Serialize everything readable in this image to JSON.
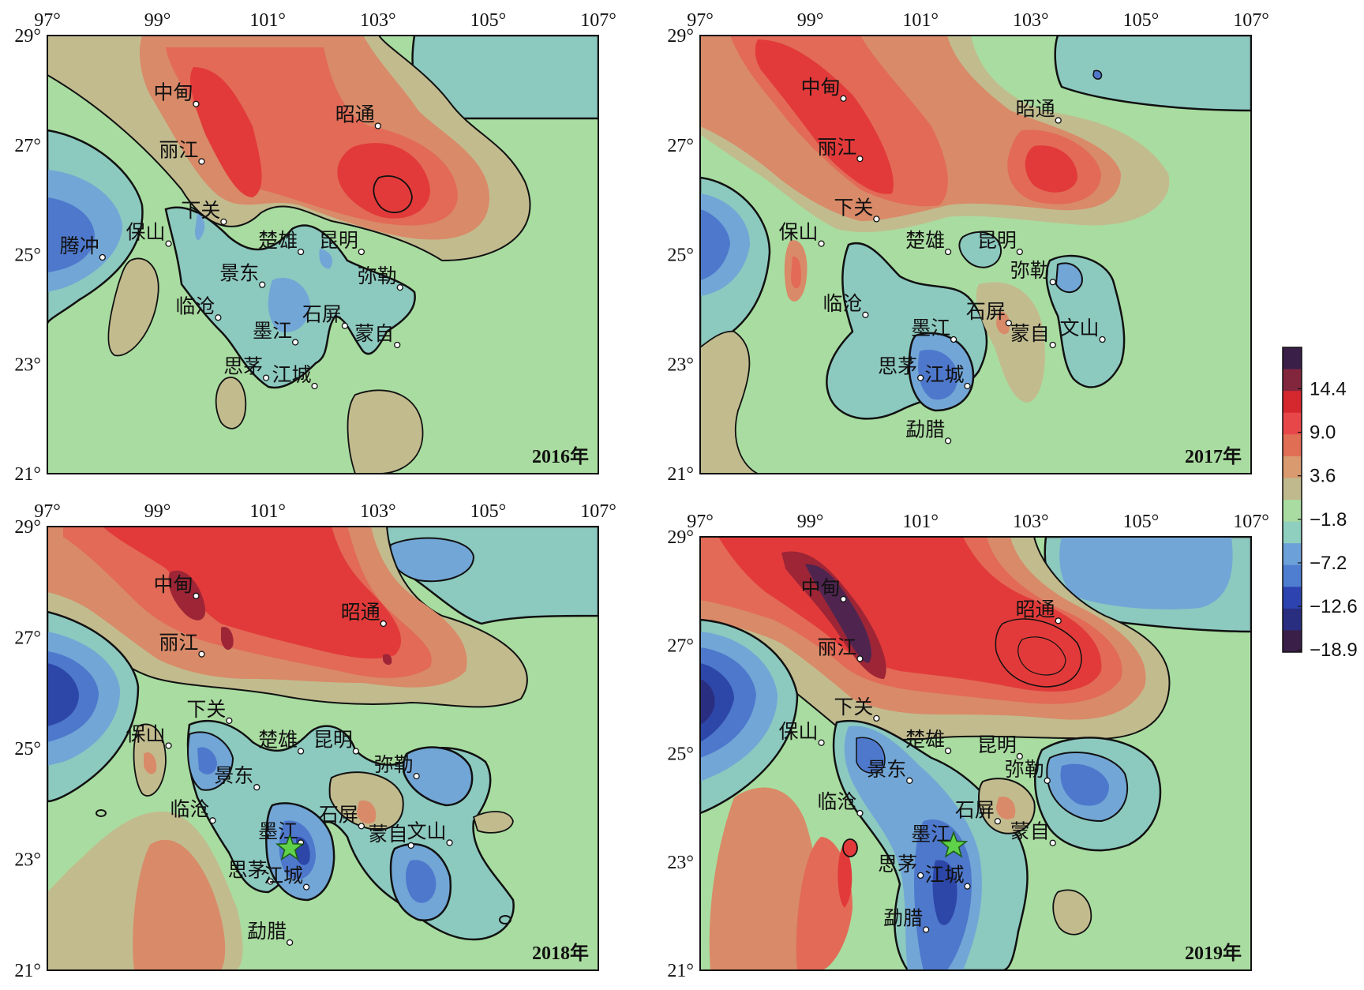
{
  "axes": {
    "lon_labels": [
      "97°",
      "99°",
      "101°",
      "103°",
      "105°",
      "107°"
    ],
    "lat_labels": [
      "29°",
      "27°",
      "25°",
      "23°",
      "21°"
    ]
  },
  "legend": {
    "labels": [
      "14.4",
      "9.0",
      "3.6",
      "−1.8",
      "−7.2",
      "−12.6",
      "−18.9"
    ],
    "colors": [
      "#3a1f48",
      "#82263e",
      "#d4282e",
      "#e8474a",
      "#df6e55",
      "#d99a6f",
      "#bfb98d",
      "#a9dca0",
      "#8fcfc0",
      "#6ca0d8",
      "#4f7ed0",
      "#2d44b0",
      "#2a2e80",
      "#3a1f48"
    ]
  },
  "palette": {
    "background": "#a9dca0",
    "tan": "#c2bb8e",
    "orange": "#d98a68",
    "salmon": "#e26a57",
    "red": "#e23a3a",
    "darkred": "#9d2536",
    "purple": "#4f2550",
    "teal": "#8cc9bf",
    "lightblue": "#72a6d6",
    "blue": "#4e78cc",
    "darkblue": "#2d47a8",
    "star": "#5fd14a"
  },
  "panels": [
    {
      "year": "2016年",
      "cities": [
        {
          "name": "中甸",
          "lon": 99.7,
          "lat": 27.75
        },
        {
          "name": "丽江",
          "lon": 99.8,
          "lat": 26.7
        },
        {
          "name": "昭通",
          "lon": 103.0,
          "lat": 27.35
        },
        {
          "name": "保山",
          "lon": 99.2,
          "lat": 25.2
        },
        {
          "name": "下关",
          "lon": 100.2,
          "lat": 25.6
        },
        {
          "name": "腾冲",
          "lon": 98.0,
          "lat": 24.95
        },
        {
          "name": "楚雄",
          "lon": 101.6,
          "lat": 25.05
        },
        {
          "name": "昆明",
          "lon": 102.7,
          "lat": 25.05
        },
        {
          "name": "景东",
          "lon": 100.9,
          "lat": 24.45
        },
        {
          "name": "弥勒",
          "lon": 103.4,
          "lat": 24.4
        },
        {
          "name": "临沧",
          "lon": 100.1,
          "lat": 23.85
        },
        {
          "name": "石屏",
          "lon": 102.4,
          "lat": 23.7
        },
        {
          "name": "蒙自",
          "lon": 103.35,
          "lat": 23.35
        },
        {
          "name": "墨江",
          "lon": 101.5,
          "lat": 23.4
        },
        {
          "name": "思茅",
          "lon": 100.97,
          "lat": 22.75
        },
        {
          "name": "江城",
          "lon": 101.85,
          "lat": 22.6
        }
      ]
    },
    {
      "year": "2017年",
      "cities": [
        {
          "name": "中甸",
          "lon": 99.6,
          "lat": 27.85
        },
        {
          "name": "丽江",
          "lon": 99.9,
          "lat": 26.75
        },
        {
          "name": "昭通",
          "lon": 103.5,
          "lat": 27.45
        },
        {
          "name": "下关",
          "lon": 100.2,
          "lat": 25.65
        },
        {
          "name": "保山",
          "lon": 99.2,
          "lat": 25.2
        },
        {
          "name": "楚雄",
          "lon": 101.5,
          "lat": 25.05
        },
        {
          "name": "昆明",
          "lon": 102.8,
          "lat": 25.05
        },
        {
          "name": "弥勒",
          "lon": 103.4,
          "lat": 24.5
        },
        {
          "name": "临沧",
          "lon": 100.0,
          "lat": 23.9
        },
        {
          "name": "石屏",
          "lon": 102.6,
          "lat": 23.75
        },
        {
          "name": "墨江",
          "lon": 101.6,
          "lat": 23.45
        },
        {
          "name": "文山",
          "lon": 104.3,
          "lat": 23.45
        },
        {
          "name": "蒙自",
          "lon": 103.4,
          "lat": 23.35
        },
        {
          "name": "思茅",
          "lon": 101.0,
          "lat": 22.75
        },
        {
          "name": "江城",
          "lon": 101.85,
          "lat": 22.6
        },
        {
          "name": "勐腊",
          "lon": 101.5,
          "lat": 21.6
        }
      ]
    },
    {
      "year": "2018年",
      "cities": [
        {
          "name": "中甸",
          "lon": 99.7,
          "lat": 27.75
        },
        {
          "name": "丽江",
          "lon": 99.8,
          "lat": 26.7
        },
        {
          "name": "昭通",
          "lon": 103.1,
          "lat": 27.25
        },
        {
          "name": "下关",
          "lon": 100.3,
          "lat": 25.5
        },
        {
          "name": "楚雄",
          "lon": 101.6,
          "lat": 24.95
        },
        {
          "name": "昆明",
          "lon": 102.6,
          "lat": 24.95
        },
        {
          "name": "保山",
          "lon": 99.2,
          "lat": 25.05
        },
        {
          "name": "景东",
          "lon": 100.8,
          "lat": 24.3
        },
        {
          "name": "弥勒",
          "lon": 103.7,
          "lat": 24.5
        },
        {
          "name": "石屏",
          "lon": 102.7,
          "lat": 23.6
        },
        {
          "name": "临沧",
          "lon": 100.0,
          "lat": 23.7
        },
        {
          "name": "墨江",
          "lon": 101.6,
          "lat": 23.3
        },
        {
          "name": "文山",
          "lon": 104.3,
          "lat": 23.3
        },
        {
          "name": "蒙自",
          "lon": 103.6,
          "lat": 23.25
        },
        {
          "name": "思茅",
          "lon": 101.05,
          "lat": 22.6
        },
        {
          "name": "江城",
          "lon": 101.7,
          "lat": 22.5
        },
        {
          "name": "勐腊",
          "lon": 101.4,
          "lat": 21.5
        }
      ],
      "star": {
        "lon": 101.4,
        "lat": 23.2
      }
    },
    {
      "year": "2019年",
      "cities": [
        {
          "name": "中甸",
          "lon": 99.6,
          "lat": 27.85
        },
        {
          "name": "丽江",
          "lon": 99.9,
          "lat": 26.75
        },
        {
          "name": "昭通",
          "lon": 103.5,
          "lat": 27.45
        },
        {
          "name": "下关",
          "lon": 100.2,
          "lat": 25.65
        },
        {
          "name": "楚雄",
          "lon": 101.5,
          "lat": 25.05
        },
        {
          "name": "昆明",
          "lon": 102.8,
          "lat": 24.95
        },
        {
          "name": "保山",
          "lon": 99.2,
          "lat": 25.2
        },
        {
          "name": "景东",
          "lon": 100.8,
          "lat": 24.5
        },
        {
          "name": "弥勒",
          "lon": 103.3,
          "lat": 24.5
        },
        {
          "name": "临沧",
          "lon": 99.9,
          "lat": 23.9
        },
        {
          "name": "石屏",
          "lon": 102.4,
          "lat": 23.75
        },
        {
          "name": "墨江",
          "lon": 101.6,
          "lat": 23.3
        },
        {
          "name": "蒙自",
          "lon": 103.4,
          "lat": 23.35
        },
        {
          "name": "思茅",
          "lon": 101.0,
          "lat": 22.75
        },
        {
          "name": "江城",
          "lon": 101.85,
          "lat": 22.55
        },
        {
          "name": "勐腊",
          "lon": 101.1,
          "lat": 21.75
        }
      ],
      "star": {
        "lon": 101.6,
        "lat": 23.3
      }
    }
  ]
}
